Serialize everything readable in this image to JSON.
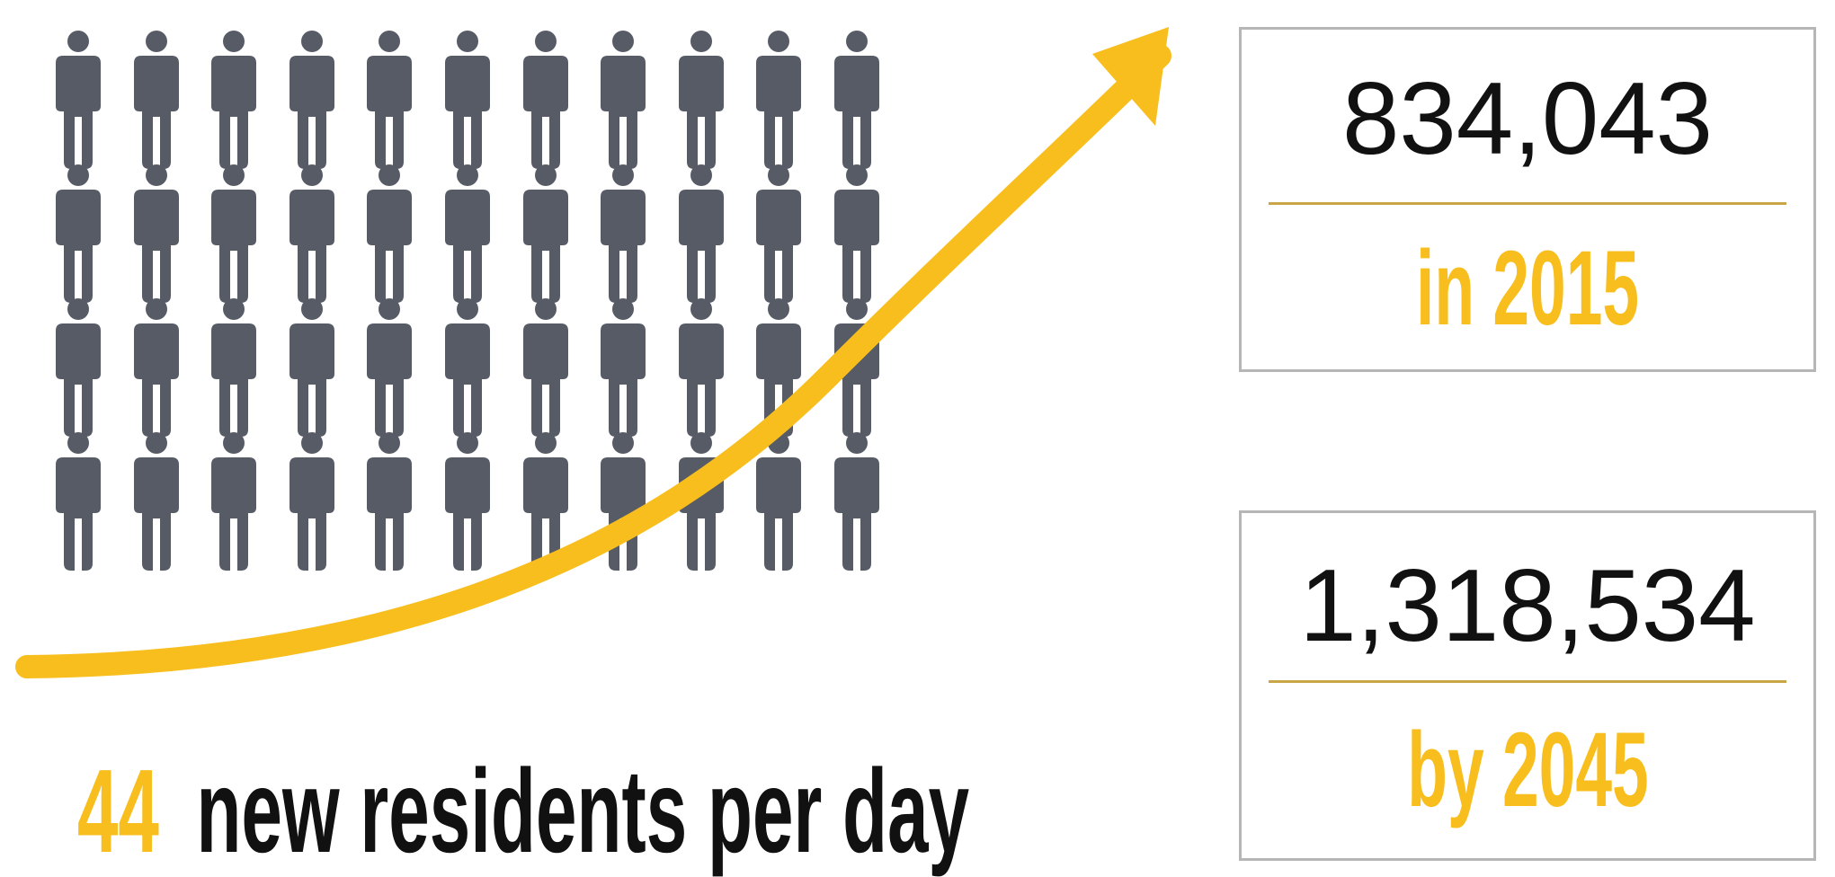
{
  "grid": {
    "rows": 4,
    "columns": 11,
    "person_icon": "person-icon",
    "person_color": "#575b66"
  },
  "arrow": {
    "icon": "growth-arrow-icon",
    "color": "#f7be1e"
  },
  "caption": {
    "number": "44",
    "text": "new residents per day"
  },
  "stats": [
    {
      "value": "834,043",
      "label": "in 2015"
    },
    {
      "value": "1,318,534",
      "label": "by 2045"
    }
  ],
  "colors": {
    "accent": "#f7be1e",
    "divider": "#c9a645",
    "border": "#b6b6b6",
    "text": "#111111"
  }
}
